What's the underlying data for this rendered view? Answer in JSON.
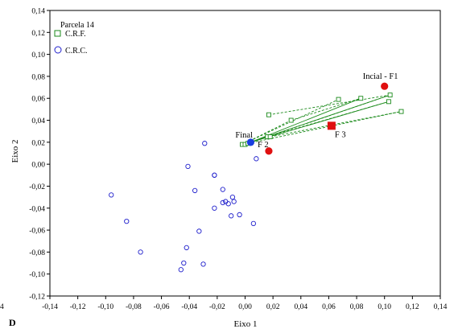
{
  "chart_data": {
    "type": "scatter",
    "xlabel": "Eixo 1",
    "ylabel": "Eixo 2",
    "xlim": [
      -0.14,
      0.14
    ],
    "ylim": [
      -0.12,
      0.14
    ],
    "x_ticks": [
      "-0,14",
      "-0,12",
      "-0,10",
      "-0,08",
      "-0,06",
      "-0,04",
      "-0,02",
      "0,00",
      "0,02",
      "0,04",
      "0,06",
      "0,08",
      "0,10",
      "0,12",
      "0,14"
    ],
    "y_ticks": [
      "0,14",
      "0,12",
      "0,10",
      "0,08",
      "0,06",
      "0,04",
      "0,02",
      "0,00",
      "-0,02",
      "-0,04",
      "-0,06",
      "-0,08",
      "-0,10",
      "-0,12"
    ],
    "panel_label": "D",
    "left_edge_text": "4",
    "legend": {
      "title": "Parcela 14",
      "placement": "top-left",
      "items": [
        {
          "label": "C.R.F.",
          "marker": "square",
          "color": "#1a8a1a"
        },
        {
          "label": "C.R.C.",
          "marker": "circle",
          "color": "#1f1fcc"
        }
      ]
    },
    "colors": {
      "crf": "#1a8a1a",
      "crc": "#1f1fcc",
      "centroid_red": "#e01010",
      "final_blue": "#1a3fe0"
    },
    "series": [
      {
        "name": "C.R.F.",
        "marker": "square",
        "points": [
          [
            -0.002,
            0.018
          ],
          [
            0.0,
            0.018
          ],
          [
            0.002,
            0.019
          ],
          [
            0.004,
            0.02
          ],
          [
            0.016,
            0.025
          ],
          [
            0.018,
            0.025
          ],
          [
            0.033,
            0.04
          ],
          [
            0.017,
            0.045
          ],
          [
            0.067,
            0.059
          ],
          [
            0.083,
            0.06
          ],
          [
            0.104,
            0.063
          ],
          [
            0.103,
            0.057
          ],
          [
            0.112,
            0.048
          ]
        ]
      },
      {
        "name": "C.R.C.",
        "marker": "circle",
        "points": [
          [
            -0.029,
            0.019
          ],
          [
            -0.041,
            -0.002
          ],
          [
            -0.022,
            -0.01
          ],
          [
            -0.022,
            -0.01
          ],
          [
            0.008,
            0.005
          ],
          [
            -0.036,
            -0.024
          ],
          [
            -0.096,
            -0.028
          ],
          [
            -0.016,
            -0.023
          ],
          [
            -0.014,
            -0.034
          ],
          [
            -0.016,
            -0.035
          ],
          [
            -0.008,
            -0.034
          ],
          [
            -0.009,
            -0.03
          ],
          [
            -0.012,
            -0.036
          ],
          [
            -0.022,
            -0.04
          ],
          [
            -0.004,
            -0.046
          ],
          [
            -0.01,
            -0.047
          ],
          [
            0.006,
            -0.054
          ],
          [
            -0.085,
            -0.052
          ],
          [
            -0.033,
            -0.061
          ],
          [
            -0.042,
            -0.076
          ],
          [
            -0.075,
            -0.08
          ],
          [
            -0.044,
            -0.09
          ],
          [
            -0.03,
            -0.091
          ],
          [
            -0.046,
            -0.096
          ]
        ]
      }
    ],
    "trajectory_lines": [
      {
        "style": "solid",
        "points": [
          [
            0.004,
            0.02
          ],
          [
            0.104,
            0.063
          ]
        ]
      },
      {
        "style": "solid",
        "points": [
          [
            0.004,
            0.02
          ],
          [
            0.103,
            0.057
          ]
        ]
      },
      {
        "style": "solid",
        "points": [
          [
            0.004,
            0.02
          ],
          [
            0.083,
            0.06
          ]
        ]
      },
      {
        "style": "dashed",
        "points": [
          [
            -0.002,
            0.018
          ],
          [
            0.067,
            0.059
          ]
        ]
      },
      {
        "style": "dashed",
        "points": [
          [
            0.0,
            0.018
          ],
          [
            0.104,
            0.063
          ]
        ]
      },
      {
        "style": "dashed",
        "points": [
          [
            0.002,
            0.019
          ],
          [
            0.112,
            0.048
          ]
        ]
      },
      {
        "style": "dashed",
        "points": [
          [
            0.016,
            0.025
          ],
          [
            0.103,
            0.057
          ]
        ]
      },
      {
        "style": "dashed",
        "points": [
          [
            0.018,
            0.025
          ],
          [
            0.112,
            0.048
          ]
        ]
      },
      {
        "style": "dashed",
        "points": [
          [
            0.017,
            0.045
          ],
          [
            0.104,
            0.063
          ]
        ]
      },
      {
        "style": "dashed",
        "points": [
          [
            0.033,
            0.04
          ],
          [
            0.083,
            0.06
          ]
        ]
      },
      {
        "style": "dashed",
        "points": [
          [
            -0.002,
            0.018
          ],
          [
            0.033,
            0.04
          ]
        ]
      }
    ],
    "centroids": [
      {
        "label": "Incial - F1",
        "x": 0.1,
        "y": 0.071,
        "marker": "circle",
        "color": "#e01010"
      },
      {
        "label": "F 3",
        "x": 0.062,
        "y": 0.035,
        "marker": "square",
        "color": "#e01010"
      },
      {
        "label": "F 2",
        "x": 0.017,
        "y": 0.012,
        "marker": "circle",
        "color": "#e01010"
      },
      {
        "label": "Final",
        "x": 0.004,
        "y": 0.02,
        "marker": "circle",
        "color": "#1a3fe0"
      }
    ]
  }
}
